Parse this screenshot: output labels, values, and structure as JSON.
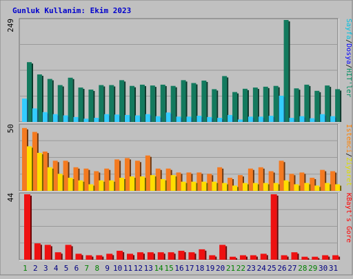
{
  "chart_data": [
    {
      "type": "bar",
      "title": "Gunluk Kullanim: Ekim 2023",
      "y_tick_label": "249",
      "legend": [
        {
          "name": "HIT'ler",
          "color": "#008f60"
        },
        {
          "name": "Dosya",
          "color": "#0000ff"
        },
        {
          "name": "Sayfa",
          "color": "#00c0e0"
        }
      ],
      "categories": [
        "1",
        "2",
        "3",
        "4",
        "5",
        "6",
        "7",
        "8",
        "9",
        "10",
        "11",
        "12",
        "13",
        "14",
        "15",
        "16",
        "17",
        "18",
        "19",
        "20",
        "21",
        "22",
        "23",
        "24",
        "25",
        "26",
        "27",
        "28",
        "29",
        "30",
        "31"
      ],
      "ylim": [
        0,
        249
      ],
      "series": [
        {
          "name": "HIT'ler",
          "color": "#137a5e",
          "values": [
            146,
            116,
            105,
            90,
            108,
            84,
            79,
            90,
            90,
            102,
            88,
            91,
            89,
            91,
            88,
            102,
            95,
            101,
            80,
            112,
            73,
            81,
            84,
            86,
            88,
            249,
            82,
            91,
            76,
            89,
            80
          ]
        },
        {
          "name": "Sayfa",
          "color": "#33ccff",
          "values": [
            57,
            33,
            24,
            19,
            16,
            12,
            8,
            10,
            19,
            18,
            17,
            16,
            19,
            14,
            23,
            13,
            13,
            15,
            12,
            10,
            17,
            6,
            13,
            13,
            15,
            64,
            10,
            14,
            9,
            19,
            14
          ]
        }
      ]
    },
    {
      "type": "bar",
      "y_tick_label": "50",
      "legend": [
        {
          "name": "Ziyaret",
          "color": "#dddd00"
        },
        {
          "name": "Istemci",
          "color": "#ff8000"
        }
      ],
      "categories": [
        "1",
        "2",
        "3",
        "4",
        "5",
        "6",
        "7",
        "8",
        "9",
        "10",
        "11",
        "12",
        "13",
        "14",
        "15",
        "16",
        "17",
        "18",
        "19",
        "20",
        "21",
        "22",
        "23",
        "24",
        "25",
        "26",
        "27",
        "28",
        "29",
        "30",
        "31"
      ],
      "ylim": [
        0,
        50
      ],
      "series": [
        {
          "name": "Ziyaret",
          "color": "#ffdd00",
          "values": [
            34,
            29,
            18,
            13,
            10,
            8,
            5,
            8,
            8,
            10,
            11,
            11,
            12,
            9,
            12,
            7,
            7,
            7,
            7,
            6,
            4,
            6,
            6,
            6,
            6,
            8,
            5,
            6,
            4,
            6,
            5
          ]
        },
        {
          "name": "Istemci",
          "color": "#f47a20",
          "values": [
            48,
            45,
            30,
            23,
            23,
            18,
            17,
            15,
            17,
            24,
            25,
            23,
            27,
            17,
            17,
            14,
            14,
            14,
            13,
            18,
            10,
            12,
            17,
            18,
            15,
            23,
            13,
            14,
            10,
            16,
            15
          ]
        }
      ]
    },
    {
      "type": "bar",
      "y_tick_label": "44",
      "legend": [
        {
          "name": "KBayt's Gore",
          "color": "#ff0000"
        }
      ],
      "categories": [
        "1",
        "2",
        "3",
        "4",
        "5",
        "6",
        "7",
        "8",
        "9",
        "10",
        "11",
        "12",
        "13",
        "14",
        "15",
        "16",
        "17",
        "18",
        "19",
        "20",
        "21",
        "22",
        "23",
        "24",
        "25",
        "26",
        "27",
        "28",
        "29",
        "30",
        "31"
      ],
      "ylim": [
        0,
        44
      ],
      "series": [
        {
          "name": "KBayt's Gore",
          "color": "#ee1111",
          "values": [
            44,
            11,
            10,
            5,
            10,
            4,
            3,
            3,
            4,
            6,
            4,
            5,
            5,
            5,
            5,
            6,
            5,
            7,
            3,
            10,
            2,
            3,
            3,
            4,
            44,
            3,
            5,
            2,
            2,
            3,
            3
          ]
        }
      ]
    }
  ],
  "weekend_days": [
    "1",
    "7",
    "8",
    "14",
    "15",
    "21",
    "22",
    "28",
    "29"
  ],
  "colors": {
    "background": "#c0c0c0",
    "plot_background": "#c0c0c0",
    "grid": "#999999",
    "title": "#0000cc",
    "weekday_label": "#000080",
    "weekend_label": "#008000"
  }
}
